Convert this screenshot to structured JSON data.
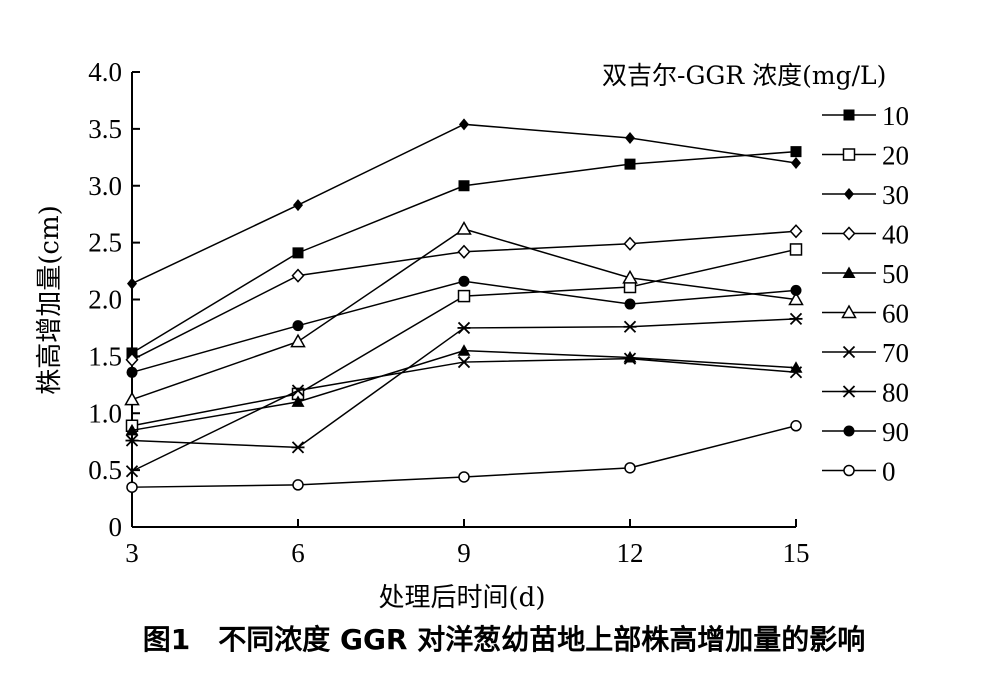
{
  "chart_data": {
    "type": "line",
    "xlabel": "处理后时间(d)",
    "ylabel": "株高增加量(cm)",
    "x": [
      3,
      6,
      9,
      12,
      15
    ],
    "x_ticks": [
      "3",
      "6",
      "9",
      "12",
      "15"
    ],
    "ylim": [
      0,
      4.0
    ],
    "y_ticks": [
      "0",
      "0.5",
      "1.0",
      "1.5",
      "2.0",
      "2.5",
      "3.0",
      "3.5",
      "4.0"
    ],
    "grid": false,
    "legend": {
      "title": "双吉尔-GGR 浓度(mg/L)",
      "placement": "right"
    },
    "series": [
      {
        "name": "10",
        "marker": "square-filled",
        "values": [
          1.53,
          2.41,
          3.0,
          3.19,
          3.3
        ]
      },
      {
        "name": "20",
        "marker": "square-open",
        "values": [
          0.89,
          1.17,
          2.03,
          2.11,
          2.44
        ]
      },
      {
        "name": "30",
        "marker": "diamond-filled",
        "values": [
          2.14,
          2.83,
          3.54,
          3.42,
          3.2
        ]
      },
      {
        "name": "40",
        "marker": "diamond-open",
        "values": [
          1.47,
          2.21,
          2.42,
          2.49,
          2.6
        ]
      },
      {
        "name": "50",
        "marker": "triangle-filled",
        "values": [
          0.85,
          1.1,
          1.55,
          1.49,
          1.4
        ]
      },
      {
        "name": "60",
        "marker": "triangle-open",
        "values": [
          1.12,
          1.63,
          2.62,
          2.19,
          2.0
        ]
      },
      {
        "name": "70",
        "marker": "x",
        "values": [
          0.49,
          1.2,
          1.45,
          1.48,
          1.36
        ]
      },
      {
        "name": "80",
        "marker": "asterisk",
        "values": [
          0.76,
          0.7,
          1.75,
          1.76,
          1.83
        ]
      },
      {
        "name": "90",
        "marker": "circle-filled",
        "values": [
          1.36,
          1.77,
          2.16,
          1.96,
          2.08
        ]
      },
      {
        "name": "0",
        "marker": "circle-open",
        "values": [
          0.35,
          0.37,
          0.44,
          0.52,
          0.89
        ]
      }
    ]
  },
  "caption": "图1　不同浓度 GGR 对洋葱幼苗地上部株高增加量的影响"
}
